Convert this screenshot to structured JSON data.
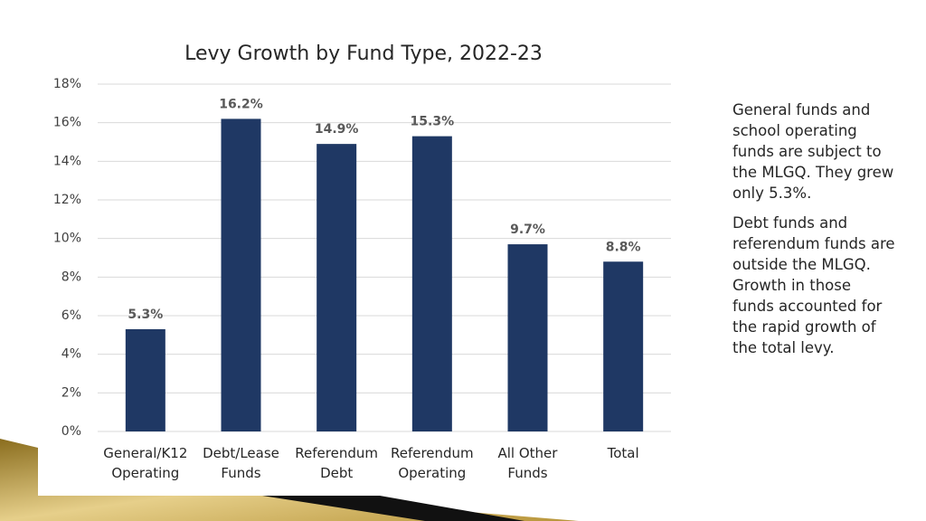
{
  "chart_data": {
    "type": "bar",
    "title": "Levy Growth by Fund Type, 2022-23",
    "categories": [
      "General/K12 Operating",
      "Debt/Lease Funds",
      "Referendum Debt",
      "Referendum Operating",
      "All Other Funds",
      "Total"
    ],
    "values": [
      5.3,
      16.2,
      14.9,
      15.3,
      9.7,
      8.8
    ],
    "value_labels": [
      "5.3%",
      "16.2%",
      "14.9%",
      "15.3%",
      "9.7%",
      "8.8%"
    ],
    "color": "#1f3864",
    "ylim": [
      0,
      18
    ],
    "yticks": [
      {
        "value": 0,
        "label": "0%"
      },
      {
        "value": 2,
        "label": "2%"
      },
      {
        "value": 4,
        "label": "4%"
      },
      {
        "value": 6,
        "label": "6%"
      },
      {
        "value": 8,
        "label": "8%"
      },
      {
        "value": 10,
        "label": "10%"
      },
      {
        "value": 12,
        "label": "12%"
      },
      {
        "value": 14,
        "label": "14%"
      },
      {
        "value": 16,
        "label": "16%"
      },
      {
        "value": 18,
        "label": "18%"
      }
    ],
    "grid": true
  },
  "notes": [
    "General funds and school operating funds are subject to the MLGQ.  They grew only 5.3%.",
    "Debt funds and referendum funds are outside the MLGQ.  Growth in those funds accounted for the rapid growth of the total levy."
  ]
}
